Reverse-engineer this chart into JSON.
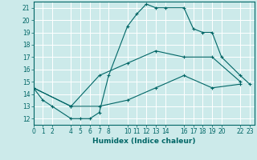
{
  "xlabel": "Humidex (Indice chaleur)",
  "bg_color": "#cceaea",
  "grid_color": "#ffffff",
  "line_color": "#006666",
  "line1_x": [
    0,
    1,
    2,
    4,
    5,
    6,
    7,
    8,
    10,
    11,
    12,
    13,
    14,
    16,
    17,
    18,
    19,
    20,
    22,
    23
  ],
  "line1_y": [
    14.5,
    13.5,
    13.0,
    12.0,
    12.0,
    12.0,
    12.5,
    15.5,
    19.5,
    20.5,
    21.3,
    21.0,
    21.0,
    21.0,
    19.3,
    19.0,
    19.0,
    17.0,
    15.5,
    14.8
  ],
  "line2_x": [
    0,
    4,
    7,
    10,
    13,
    16,
    19,
    22
  ],
  "line2_y": [
    14.5,
    13.0,
    15.5,
    16.5,
    17.5,
    17.0,
    17.0,
    15.0
  ],
  "line3_x": [
    0,
    4,
    7,
    10,
    13,
    16,
    19,
    22
  ],
  "line3_y": [
    14.5,
    13.0,
    13.0,
    13.5,
    14.5,
    15.5,
    14.5,
    14.8
  ],
  "xlim": [
    0,
    23.5
  ],
  "ylim": [
    11.5,
    21.5
  ],
  "xticks": [
    0,
    1,
    2,
    4,
    5,
    6,
    7,
    8,
    10,
    11,
    12,
    13,
    14,
    16,
    17,
    18,
    19,
    20,
    22,
    23
  ],
  "yticks": [
    12,
    13,
    14,
    15,
    16,
    17,
    18,
    19,
    20,
    21
  ],
  "tick_fontsize": 5.5,
  "xlabel_fontsize": 6.5
}
